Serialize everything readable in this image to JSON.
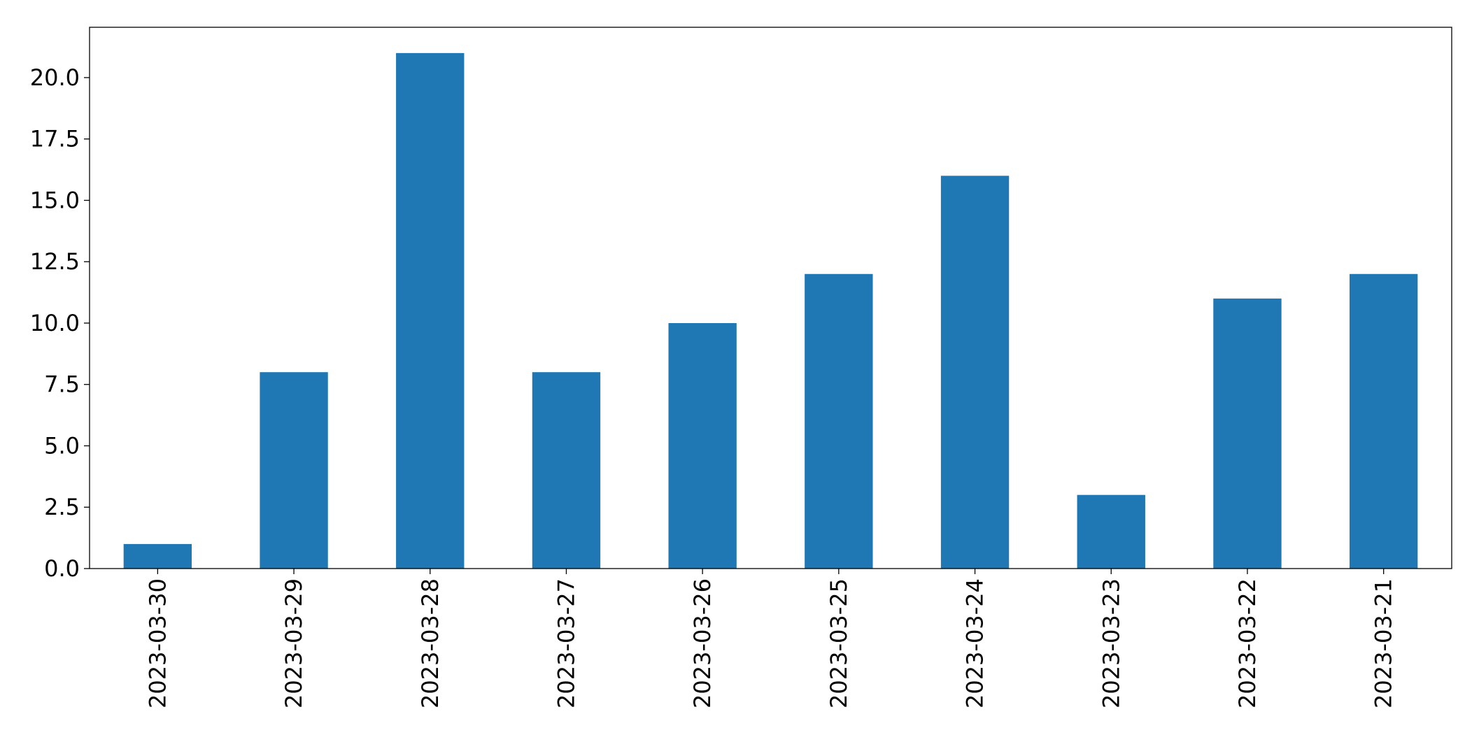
{
  "chart_data": {
    "type": "bar",
    "categories": [
      "2023-03-30",
      "2023-03-29",
      "2023-03-28",
      "2023-03-27",
      "2023-03-26",
      "2023-03-25",
      "2023-03-24",
      "2023-03-23",
      "2023-03-22",
      "2023-03-21"
    ],
    "values": [
      1,
      8,
      21,
      8,
      10,
      12,
      16,
      3,
      11,
      12
    ],
    "color": "#1f77b4",
    "ylim": [
      0,
      22.05
    ],
    "yticks": [
      {
        "value": 0,
        "label": "0.0"
      },
      2.5,
      {
        "value": 5,
        "label": "5.0"
      },
      7.5,
      {
        "value": 10,
        "label": "10.0"
      },
      12.5,
      {
        "value": 15,
        "label": "15.0"
      },
      17.5,
      {
        "value": 20,
        "label": "20.0"
      }
    ],
    "grid": false
  }
}
